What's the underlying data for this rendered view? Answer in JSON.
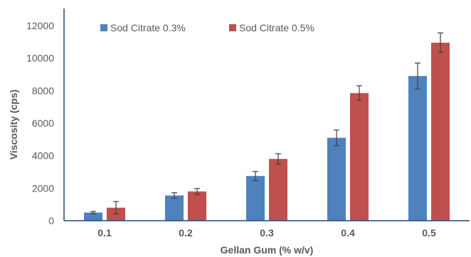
{
  "chart_data": {
    "type": "bar",
    "categories": [
      "0.1",
      "0.2",
      "0.3",
      "0.4",
      "0.5"
    ],
    "series": [
      {
        "name": "Sod Citrate 0.3%",
        "color": "#4F81BD",
        "values": [
          500,
          1550,
          2750,
          5100,
          8900
        ],
        "errors": [
          70,
          170,
          280,
          480,
          800
        ]
      },
      {
        "name": "Sod Citrate 0.5%",
        "color": "#C0504D",
        "values": [
          800,
          1800,
          3800,
          7850,
          10950
        ],
        "errors": [
          380,
          180,
          320,
          450,
          600
        ]
      }
    ],
    "xlabel": "Gellan Gum (% w/v)",
    "ylabel": "Viscosity (cps)",
    "ylim": [
      0,
      12000
    ],
    "yticks": [
      0,
      2000,
      4000,
      6000,
      8000,
      10000,
      12000
    ],
    "grid": false,
    "legend_position": "top-left",
    "error_bars": true,
    "axis_color": "#1F497D",
    "text_color": "#595959",
    "errorbar_color": "#404040"
  }
}
